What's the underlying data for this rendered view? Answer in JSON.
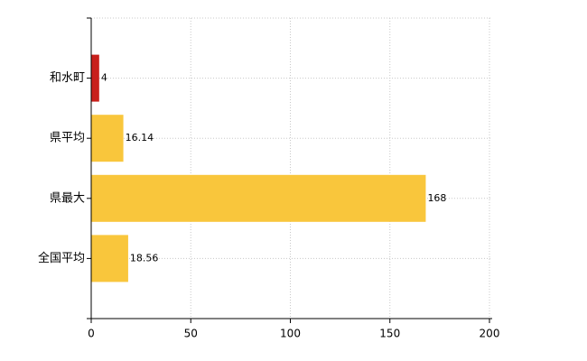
{
  "chart_data": {
    "type": "bar",
    "orientation": "horizontal",
    "categories": [
      "和水町",
      "県平均",
      "県最大",
      "全国平均"
    ],
    "values": [
      4,
      16.14,
      168,
      18.56
    ],
    "colors": [
      "#c8201c",
      "#f9c63c",
      "#f9c63c",
      "#f9c63c"
    ],
    "xlim": [
      0,
      200
    ],
    "xticks": [
      0,
      50,
      100,
      150,
      200
    ],
    "grid": true
  }
}
